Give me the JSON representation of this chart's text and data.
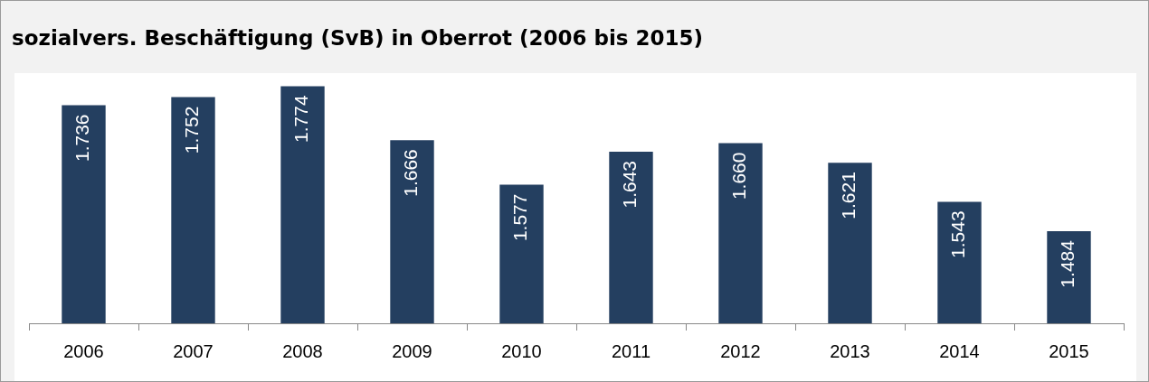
{
  "chart_data": {
    "type": "bar",
    "title": "sozialvers. Beschäftigung (SvB) in Oberrot (2006 bis 2015)",
    "categories": [
      "2006",
      "2007",
      "2008",
      "2009",
      "2010",
      "2011",
      "2012",
      "2013",
      "2014",
      "2015"
    ],
    "values": [
      1736,
      1752,
      1774,
      1666,
      1577,
      1643,
      1660,
      1621,
      1543,
      1484
    ],
    "value_labels": [
      "1.736",
      "1.752",
      "1.774",
      "1.666",
      "1.577",
      "1.643",
      "1.660",
      "1.621",
      "1.543",
      "1.484"
    ],
    "color": "#243f60",
    "ylim": [
      1300,
      1800
    ],
    "tick_labels": "x",
    "grid": false,
    "legend": false
  }
}
